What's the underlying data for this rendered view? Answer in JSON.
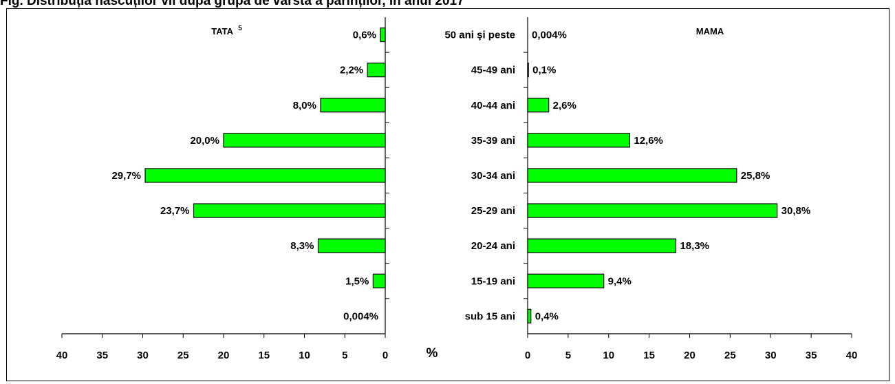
{
  "title": "Fig. Distribuția născuților vii după grupa de vârstă a părinților, în anul 2017",
  "chart_data": {
    "type": "bar",
    "orientation": "horizontal",
    "layout": "population-pyramid",
    "categories": [
      "50 ani şi peste",
      "45-49 ani",
      "40-44 ani",
      "35-39 ani",
      "30-34 ani",
      "25-29 ani",
      "20-24 ani",
      "15-19 ani",
      "sub 15 ani"
    ],
    "axis_unit_label": "%",
    "xlim": [
      0,
      40
    ],
    "xticks": [
      0,
      5,
      10,
      15,
      20,
      25,
      30,
      35,
      40
    ],
    "bar_color": "#00ff00",
    "series": [
      {
        "name": "TATA",
        "name_superscript": "5",
        "side": "left",
        "values": [
          0.6,
          2.2,
          8.0,
          20.0,
          29.7,
          23.7,
          8.3,
          1.5,
          0.004
        ],
        "labels": [
          "0,6%",
          "2,2%",
          "8,0%",
          "20,0%",
          "29,7%",
          "23,7%",
          "8,3%",
          "1,5%",
          "0,004%"
        ]
      },
      {
        "name": "MAMA",
        "side": "right",
        "values": [
          0.004,
          0.1,
          2.6,
          12.6,
          25.8,
          30.8,
          18.3,
          9.4,
          0.4
        ],
        "labels": [
          "0,004%",
          "0,1%",
          "2,6%",
          "12,6%",
          "25,8%",
          "30,8%",
          "18,3%",
          "9,4%",
          "0,4%"
        ]
      }
    ]
  }
}
